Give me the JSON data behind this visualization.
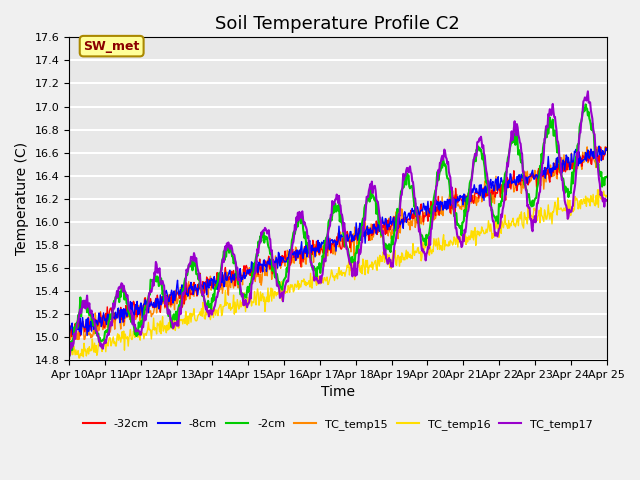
{
  "title": "Soil Temperature Profile C2",
  "xlabel": "Time",
  "ylabel": "Temperature (C)",
  "ylim": [
    14.8,
    17.6
  ],
  "xlim": [
    0,
    15
  ],
  "xtick_labels": [
    "Apr 10",
    "Apr 11",
    "Apr 12",
    "Apr 13",
    "Apr 14",
    "Apr 15",
    "Apr 16",
    "Apr 17",
    "Apr 18",
    "Apr 19",
    "Apr 20",
    "Apr 21",
    "Apr 22",
    "Apr 23",
    "Apr 24",
    "Apr 25"
  ],
  "ytick_vals": [
    14.8,
    15.0,
    15.2,
    15.4,
    15.6,
    15.8,
    16.0,
    16.2,
    16.4,
    16.6,
    16.8,
    17.0,
    17.2,
    17.4,
    17.6
  ],
  "annotation_text": "SW_met",
  "annotation_box_color": "#ffff99",
  "annotation_text_color": "#8b0000",
  "legend_entries": [
    "-32cm",
    "-8cm",
    "-2cm",
    "TC_temp15",
    "TC_temp16",
    "TC_temp17"
  ],
  "line_colors": [
    "#ff0000",
    "#0000ff",
    "#00cc00",
    "#ff8800",
    "#ffdd00",
    "#9900cc"
  ],
  "background_color": "#e8e8e8",
  "grid_color": "#ffffff",
  "title_fontsize": 13,
  "axis_label_fontsize": 10,
  "tick_fontsize": 8
}
